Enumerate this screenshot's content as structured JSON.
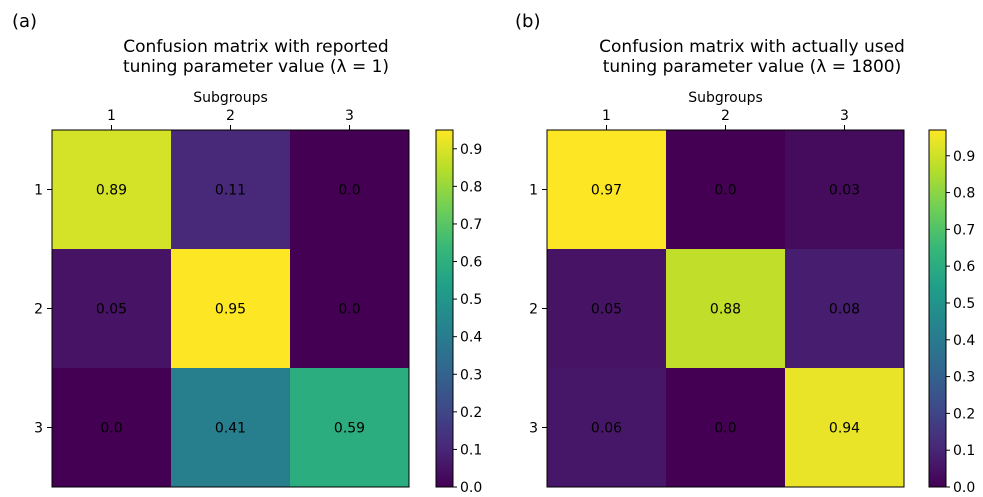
{
  "chart_data": [
    {
      "type": "heatmap",
      "panel_label": "(a)",
      "title_lines": [
        "Confusion matrix with reported",
        "tuning parameter value (λ = 1)"
      ],
      "xlabel": "Subgroups",
      "x_ticks": [
        "1",
        "2",
        "3"
      ],
      "y_ticks": [
        "1",
        "2",
        "3"
      ],
      "values": [
        [
          0.89,
          0.11,
          0.0
        ],
        [
          0.05,
          0.95,
          0.0
        ],
        [
          0.0,
          0.41,
          0.59
        ]
      ],
      "cell_labels": [
        [
          "0.89",
          "0.11",
          "0.0"
        ],
        [
          "0.05",
          "0.95",
          "0.0"
        ],
        [
          "0.0",
          "0.41",
          "0.59"
        ]
      ],
      "colormap": "viridis",
      "colorbar": {
        "range": [
          0.0,
          0.95
        ],
        "ticks": [
          "0.0",
          "0.1",
          "0.2",
          "0.3",
          "0.4",
          "0.5",
          "0.6",
          "0.7",
          "0.8",
          "0.9"
        ],
        "tick_values": [
          0.0,
          0.1,
          0.2,
          0.3,
          0.4,
          0.5,
          0.6,
          0.7,
          0.8,
          0.9
        ]
      }
    },
    {
      "type": "heatmap",
      "panel_label": "(b)",
      "title_lines": [
        "Confusion matrix with actually used",
        "tuning parameter value (λ = 1800)"
      ],
      "xlabel": "Subgroups",
      "x_ticks": [
        "1",
        "2",
        "3"
      ],
      "y_ticks": [
        "1",
        "2",
        "3"
      ],
      "values": [
        [
          0.97,
          0.0,
          0.03
        ],
        [
          0.05,
          0.88,
          0.08
        ],
        [
          0.06,
          0.0,
          0.94
        ]
      ],
      "cell_labels": [
        [
          "0.97",
          "0.0",
          "0.03"
        ],
        [
          "0.05",
          "0.88",
          "0.08"
        ],
        [
          "0.06",
          "0.0",
          "0.94"
        ]
      ],
      "colormap": "viridis",
      "colorbar": {
        "range": [
          0.0,
          0.97
        ],
        "ticks": [
          "0.0",
          "0.1",
          "0.2",
          "0.3",
          "0.4",
          "0.5",
          "0.6",
          "0.7",
          "0.8",
          "0.9"
        ],
        "tick_values": [
          0.0,
          0.1,
          0.2,
          0.3,
          0.4,
          0.5,
          0.6,
          0.7,
          0.8,
          0.9
        ]
      }
    }
  ]
}
